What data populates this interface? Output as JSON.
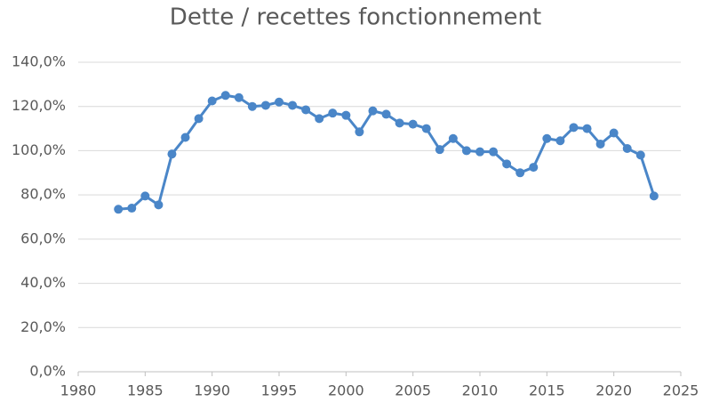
{
  "chart_data": {
    "type": "line",
    "title": "Dette / recettes fonctionnement",
    "x": [
      1983,
      1984,
      1985,
      1986,
      1987,
      1988,
      1989,
      1990,
      1991,
      1992,
      1993,
      1994,
      1995,
      1996,
      1997,
      1998,
      1999,
      2000,
      2001,
      2002,
      2003,
      2004,
      2005,
      2006,
      2007,
      2008,
      2009,
      2010,
      2011,
      2012,
      2013,
      2014,
      2015,
      2016,
      2017,
      2018,
      2019,
      2020,
      2021,
      2022,
      2023
    ],
    "values": [
      73.5,
      74,
      79.5,
      75.5,
      98.5,
      106,
      114.5,
      122.5,
      125,
      124,
      120,
      120.5,
      122,
      120.5,
      118.5,
      114.5,
      117,
      116,
      108.5,
      118,
      116.5,
      112.5,
      112,
      110,
      100.5,
      105.5,
      100,
      99.5,
      99.5,
      94,
      90,
      92.5,
      105.5,
      104.5,
      110.5,
      110,
      103,
      108,
      101,
      98,
      79.5
    ],
    "color": "#4a86c8",
    "xlim": [
      1980,
      2025
    ],
    "xticks": [
      1980,
      1985,
      1990,
      1995,
      2000,
      2005,
      2010,
      2015,
      2020,
      2025
    ],
    "ylim": [
      0,
      140
    ],
    "yticks": [
      {
        "value": 0,
        "label": "0,0%"
      },
      {
        "value": 20,
        "label": "20,0%"
      },
      {
        "value": 40,
        "label": "40,0%"
      },
      {
        "value": 60,
        "label": "60,0%"
      },
      {
        "value": 80,
        "label": "80,0%"
      },
      {
        "value": 100,
        "label": "100,0%"
      },
      {
        "value": 120,
        "label": "120,0%"
      },
      {
        "value": 140,
        "label": "140,0%"
      }
    ],
    "grid": true
  }
}
